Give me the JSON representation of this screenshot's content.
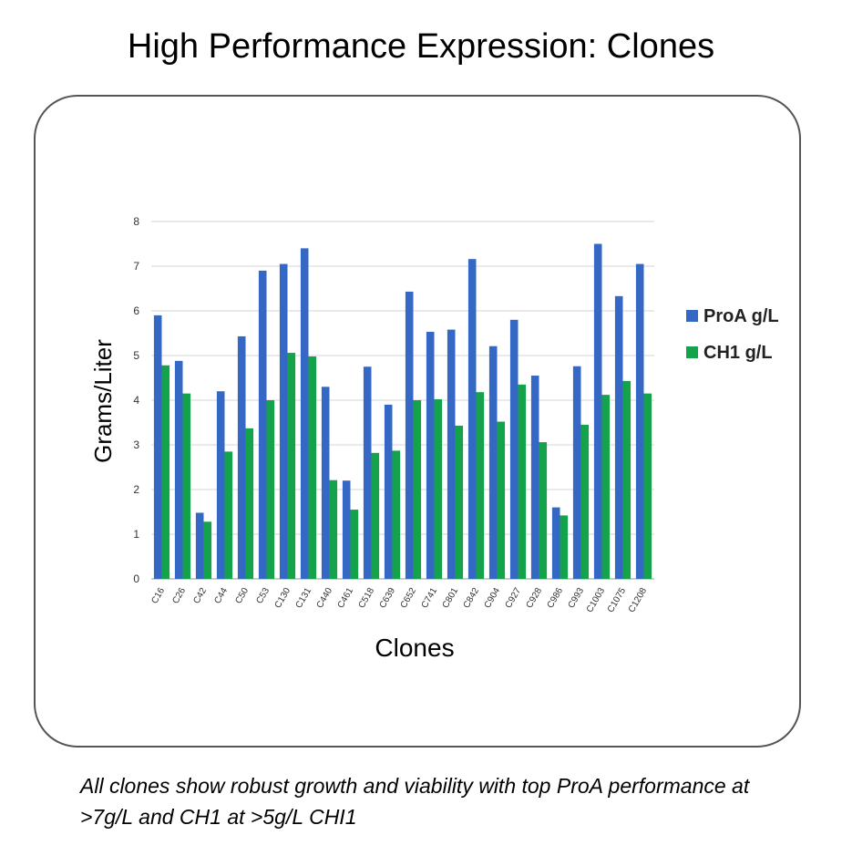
{
  "title": "High Performance Expression: Clones",
  "caption": "All clones show robust growth and viability with top ProA performance at >7g/L and CH1 at >5g/L CHI1",
  "colors": {
    "proa": "#3568c4",
    "ch1": "#14a34a",
    "grid": "#d6d6d6",
    "axis": "#999999"
  },
  "chart_data": {
    "type": "bar",
    "title": "",
    "xlabel": "Clones",
    "ylabel": "Grams/Liter",
    "ylim": [
      0,
      8
    ],
    "yticks": [
      "0",
      "1",
      "2",
      "3",
      "4",
      "5",
      "6",
      "7",
      "8"
    ],
    "grid": true,
    "legend_position": "right",
    "categories": [
      "C16",
      "C26",
      "C42",
      "C44",
      "C50",
      "C53",
      "C130",
      "C131",
      "C440",
      "C461",
      "C518",
      "C639",
      "C652",
      "C741",
      "C801",
      "C842",
      "C904",
      "C927",
      "C928",
      "C986",
      "C993",
      "C1003",
      "C1075",
      "C1208"
    ],
    "series": [
      {
        "name": "ProA g/L",
        "values": [
          5.9,
          4.88,
          1.48,
          4.2,
          5.43,
          6.9,
          7.05,
          7.4,
          4.3,
          2.2,
          4.75,
          3.9,
          6.43,
          5.53,
          5.58,
          7.16,
          5.21,
          5.8,
          4.55,
          1.6,
          4.76,
          7.5,
          6.33,
          7.05
        ]
      },
      {
        "name": "CH1 g/L",
        "values": [
          4.78,
          4.15,
          1.28,
          2.85,
          3.37,
          4.0,
          5.06,
          4.98,
          2.21,
          1.55,
          2.82,
          2.87,
          4.0,
          4.02,
          3.43,
          4.18,
          3.52,
          4.35,
          3.06,
          1.42,
          3.45,
          4.12,
          4.43,
          4.15
        ]
      }
    ]
  }
}
